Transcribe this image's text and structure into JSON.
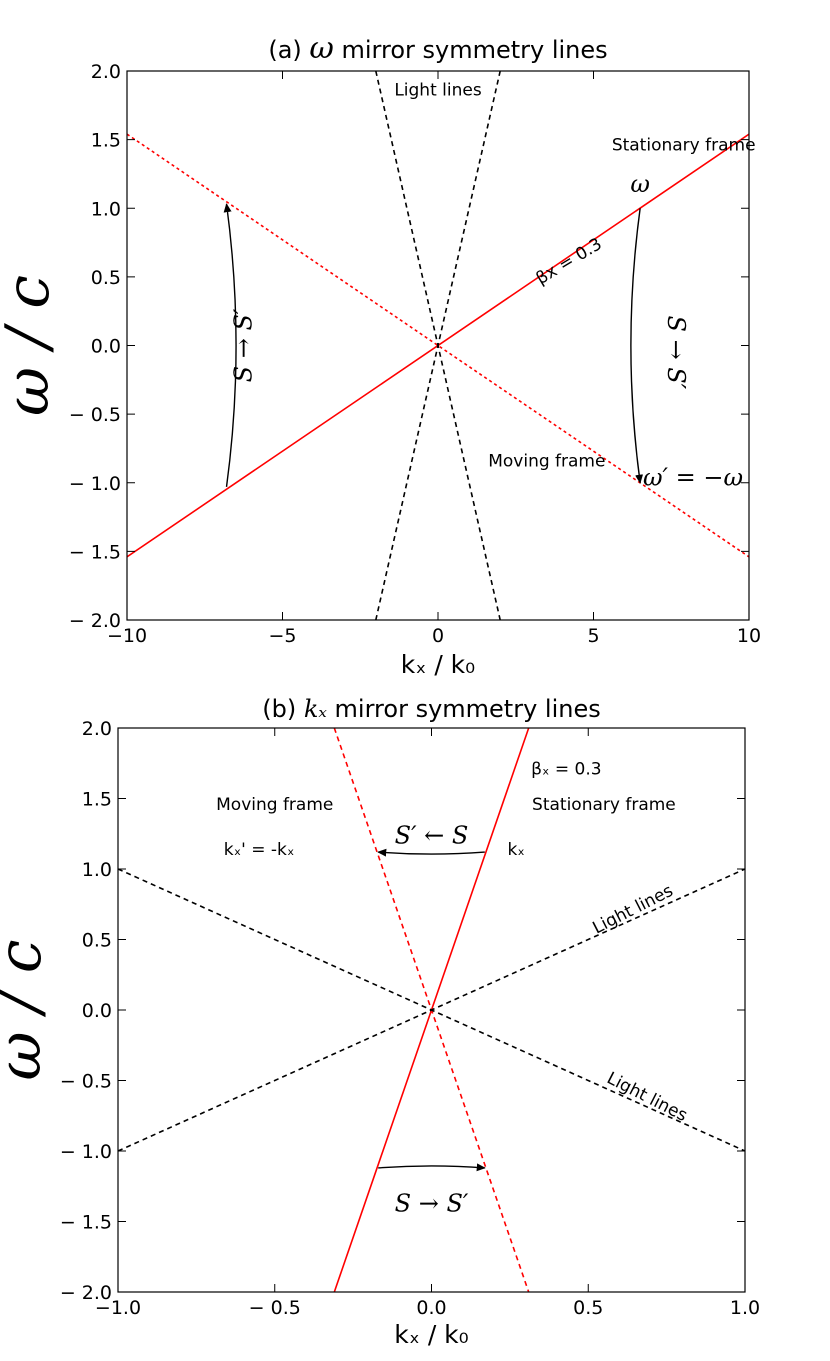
{
  "chart_data": [
    {
      "type": "line",
      "title_prefix": "(a) ",
      "title_symbol": "ω",
      "title_suffix": " mirror symmetry lines",
      "xlabel": "kₓ / k₀",
      "ylabel": "ω / c",
      "xlim": [
        -10,
        10
      ],
      "ylim": [
        -2.0,
        2.0
      ],
      "xticks": [
        -10,
        -5,
        0,
        5,
        10
      ],
      "xtick_labels": [
        "−10",
        "−5",
        "0",
        "5",
        "10"
      ],
      "yticks": [
        2.0,
        1.5,
        1.0,
        0.5,
        0.0,
        -0.5,
        -1.0,
        -1.5,
        -2.0
      ],
      "ytick_labels": [
        "2.0",
        "1.5",
        "1.0",
        "0.5",
        "0.0",
        "− 0.5",
        "− 1.0",
        "− 1.5",
        "− 2.0"
      ],
      "grid": false,
      "series": [
        {
          "style": "solid",
          "color": "#ff0000",
          "x": [
            -10,
            10
          ],
          "y": [
            -1.54,
            1.54
          ]
        },
        {
          "style": "dotted",
          "color": "#ff0000",
          "x": [
            -10,
            10
          ],
          "y": [
            1.54,
            -1.54
          ]
        },
        {
          "style": "dashed",
          "color": "#000000",
          "x": [
            -2.0,
            2.0
          ],
          "y": [
            2.0,
            -2.0
          ]
        },
        {
          "style": "dashed",
          "color": "#000000",
          "x": [
            -2.0,
            2.0
          ],
          "y": [
            -2.0,
            2.0
          ]
        }
      ],
      "annotations": [
        {
          "text": "Light lines",
          "x": 0.0,
          "y": 1.82,
          "kind": "text"
        },
        {
          "text": "Stationary frame",
          "x": 7.9,
          "y": 1.42,
          "kind": "text"
        },
        {
          "text": "Moving frame",
          "x": 3.5,
          "y": -0.88,
          "kind": "text"
        },
        {
          "text": "βx = 0.3",
          "x": 4.3,
          "y": 0.58,
          "kind": "text",
          "rotate": -31
        },
        {
          "text": "ω",
          "x": 6.5,
          "y": 1.12,
          "kind": "math"
        },
        {
          "text": "ω′ = −ω",
          "x": 8.2,
          "y": -1.02,
          "kind": "math"
        },
        {
          "text": "S → S′",
          "x": -6.0,
          "y": 0.0,
          "kind": "math",
          "rotate": -90
        },
        {
          "text": "S → S′",
          "x": 7.4,
          "y": -0.05,
          "kind": "math",
          "rotate": 90
        }
      ],
      "arrows": [
        {
          "from": [
            -6.8,
            -1.03
          ],
          "to": [
            -6.8,
            1.03
          ],
          "curve": 0.45
        },
        {
          "from": [
            6.5,
            1.0
          ],
          "to": [
            6.5,
            -1.0
          ],
          "curve": 0.45
        }
      ]
    },
    {
      "type": "line",
      "title_prefix": "(b) ",
      "title_symbol": "kₓ",
      "title_suffix": " mirror symmetry lines",
      "xlabel": "kₓ / k₀",
      "ylabel": "ω / c",
      "xlim": [
        -1.0,
        1.0
      ],
      "ylim": [
        -2.0,
        2.0
      ],
      "xticks": [
        -1.0,
        -0.5,
        0.0,
        0.5,
        1.0
      ],
      "xtick_labels": [
        "−1.0",
        "− 0.5",
        "0.0",
        "0.5",
        "1.0"
      ],
      "yticks": [
        2.0,
        1.5,
        1.0,
        0.5,
        0.0,
        -0.5,
        -1.0,
        -1.5,
        -2.0
      ],
      "ytick_labels": [
        "2.0",
        "1.5",
        "1.0",
        "0.5",
        "0.0",
        "− 0.5",
        "− 1.0",
        "− 1.5",
        "− 2.0"
      ],
      "grid": false,
      "series": [
        {
          "style": "solid",
          "color": "#ff0000",
          "x": [
            -0.31,
            0.31
          ],
          "y": [
            -2.0,
            2.0
          ]
        },
        {
          "style": "dashed",
          "color": "#ff0000",
          "x": [
            -0.31,
            0.31
          ],
          "y": [
            2.0,
            -2.0
          ]
        },
        {
          "style": "dashed",
          "color": "#000000",
          "x": [
            -1.0,
            1.0
          ],
          "y": [
            -1.0,
            1.0
          ]
        },
        {
          "style": "dashed",
          "color": "#000000",
          "x": [
            -1.0,
            1.0
          ],
          "y": [
            1.0,
            -1.0
          ]
        }
      ],
      "annotations": [
        {
          "text": "βₓ = 0.3",
          "x": 0.43,
          "y": 1.67,
          "kind": "text"
        },
        {
          "text": "Stationary frame",
          "x": 0.55,
          "y": 1.42,
          "kind": "text"
        },
        {
          "text": "Moving frame",
          "x": -0.5,
          "y": 1.42,
          "kind": "text"
        },
        {
          "text": "kₓ' = -kₓ",
          "x": -0.55,
          "y": 1.1,
          "kind": "text"
        },
        {
          "text": "kₓ",
          "x": 0.27,
          "y": 1.1,
          "kind": "text"
        },
        {
          "text": "S′ ← S",
          "x": 0.0,
          "y": 1.18,
          "kind": "math"
        },
        {
          "text": "S → S′",
          "x": 0.0,
          "y": -1.43,
          "kind": "math"
        },
        {
          "text": "Light lines",
          "x": 0.65,
          "y": 0.68,
          "kind": "text",
          "rotate": -27
        },
        {
          "text": "Light lines",
          "x": 0.68,
          "y": -0.65,
          "kind": "text",
          "rotate": 27
        }
      ],
      "arrows": [
        {
          "from": [
            0.17,
            1.12
          ],
          "to": [
            -0.17,
            1.12
          ],
          "curve": -0.25
        },
        {
          "from": [
            -0.17,
            -1.12
          ],
          "to": [
            0.17,
            -1.12
          ],
          "curve": -0.25
        }
      ]
    }
  ]
}
